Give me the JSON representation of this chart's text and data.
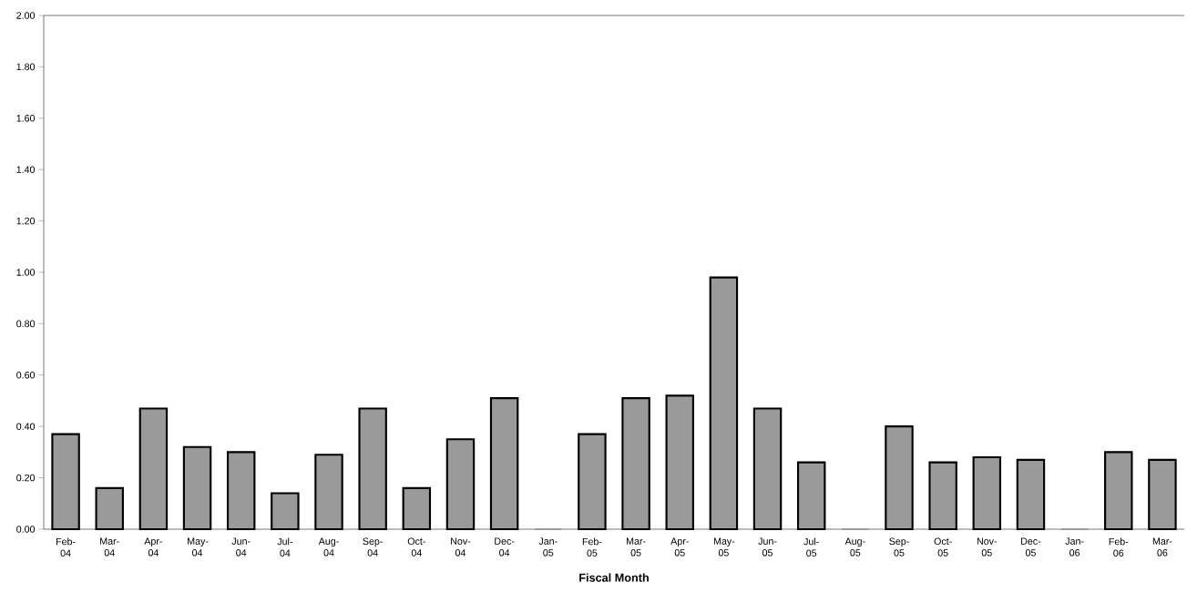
{
  "chart_data": {
    "type": "bar",
    "xlabel": "Fiscal Month",
    "categories": [
      "Feb-04",
      "Mar-04",
      "Apr-04",
      "May-04",
      "Jun-04",
      "Jul-04",
      "Aug-04",
      "Sep-04",
      "Oct-04",
      "Nov-04",
      "Dec-04",
      "Jan-05",
      "Feb-05",
      "Mar-05",
      "Apr-05",
      "May-05",
      "Jun-05",
      "Jul-05",
      "Aug-05",
      "Sep-05",
      "Oct-05",
      "Nov-05",
      "Dec-05",
      "Jan-06",
      "Feb-06",
      "Mar-06"
    ],
    "values": [
      0.37,
      0.16,
      0.47,
      0.32,
      0.3,
      0.14,
      0.29,
      0.47,
      0.16,
      0.35,
      0.51,
      0,
      0.37,
      0.51,
      0.52,
      0.98,
      0.47,
      0.26,
      0,
      0.4,
      0.26,
      0.28,
      0.27,
      0,
      0.3,
      0.27
    ],
    "color": "#9a9a9a",
    "ylim": [
      0,
      2
    ],
    "yticks": [
      {
        "value": 0,
        "label": "0.00"
      },
      {
        "value": 0.2,
        "label": "0.20"
      },
      {
        "value": 0.4,
        "label": "0.40"
      },
      {
        "value": 0.6,
        "label": "0.60"
      },
      {
        "value": 0.8,
        "label": "0.80"
      },
      {
        "value": 1,
        "label": "1.00"
      },
      {
        "value": 1.2,
        "label": "1.20"
      },
      {
        "value": 1.4,
        "label": "1.40"
      },
      {
        "value": 1.6,
        "label": "1.60"
      },
      {
        "value": 1.8,
        "label": "1.80"
      },
      {
        "value": 2,
        "label": "2.00"
      }
    ]
  }
}
